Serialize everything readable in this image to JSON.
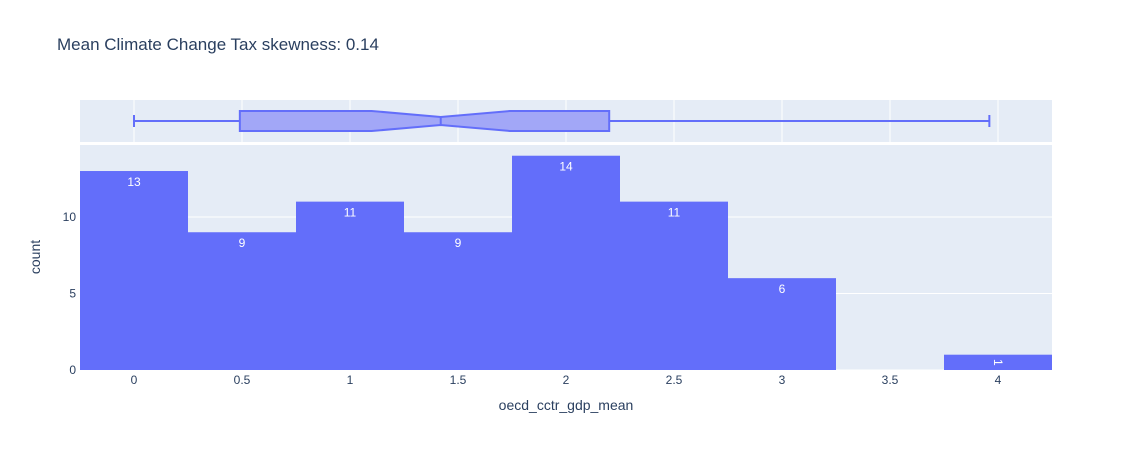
{
  "chart_data": {
    "type": "bar",
    "title": "Mean Climate Change Tax skewness: 0.14",
    "xlabel": "oecd_cctr_gdp_mean",
    "ylabel": "count",
    "xlim": [
      -0.25,
      4.25
    ],
    "ylim": [
      0,
      14.7
    ],
    "x_ticks": [
      "0",
      "0.5",
      "1",
      "1.5",
      "2",
      "2.5",
      "3",
      "3.5",
      "4"
    ],
    "y_ticks": [
      "0",
      "5",
      "10"
    ],
    "bins": [
      {
        "start": -0.25,
        "end": 0.25,
        "count": 13,
        "label": "13"
      },
      {
        "start": 0.25,
        "end": 0.75,
        "count": 9,
        "label": "9"
      },
      {
        "start": 0.75,
        "end": 1.25,
        "count": 11,
        "label": "11"
      },
      {
        "start": 1.25,
        "end": 1.75,
        "count": 9,
        "label": "9"
      },
      {
        "start": 1.75,
        "end": 2.25,
        "count": 14,
        "label": "14"
      },
      {
        "start": 2.25,
        "end": 2.75,
        "count": 11,
        "label": "11"
      },
      {
        "start": 2.75,
        "end": 3.25,
        "count": 6,
        "label": "6"
      },
      {
        "start": 3.25,
        "end": 3.75,
        "count": 0,
        "label": ""
      },
      {
        "start": 3.75,
        "end": 4.25,
        "count": 1,
        "label": "1"
      }
    ],
    "box": {
      "min": 0.0,
      "q1": 0.49,
      "median": 1.42,
      "q3": 2.2,
      "max": 3.96,
      "notch_low": 1.1,
      "notch_high": 1.74
    },
    "colors": {
      "bar": "#636efa",
      "box_line": "#636efa",
      "box_fill": "#a2a7f7",
      "plot_bg": "#e5ecf6",
      "grid": "#ffffff",
      "text": "#2a3f5f"
    },
    "grid": true,
    "legend": "none"
  }
}
